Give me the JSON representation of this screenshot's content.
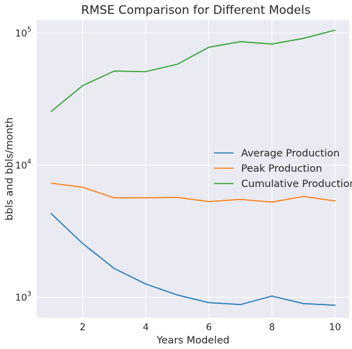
{
  "chart_data": {
    "type": "line",
    "title": "RMSE Comparison for Different Models",
    "xlabel": "Years Modeled",
    "ylabel": "bbls and bbls/month",
    "y_scale": "log",
    "xlim": [
      0.55,
      10.45
    ],
    "ylim": [
      700,
      125000
    ],
    "x_ticks": [
      2,
      4,
      6,
      8,
      10
    ],
    "y_ticks": [
      {
        "value": 1000,
        "base": "10",
        "exp": "3"
      },
      {
        "value": 10000,
        "base": "10",
        "exp": "4"
      },
      {
        "value": 100000,
        "base": "10",
        "exp": "5"
      }
    ],
    "grid": true,
    "legend_position": "center-right",
    "x": [
      1,
      2,
      3,
      4,
      5,
      6,
      7,
      8,
      9,
      10
    ],
    "series": [
      {
        "name": "Average Production",
        "color": "#1f77b4",
        "values": [
          4300,
          2550,
          1650,
          1260,
          1040,
          910,
          880,
          1020,
          895,
          870
        ]
      },
      {
        "name": "Peak Production",
        "color": "#ff7f0e",
        "values": [
          7300,
          6800,
          5650,
          5650,
          5700,
          5300,
          5500,
          5250,
          5800,
          5350
        ]
      },
      {
        "name": "Cumulative Production",
        "color": "#2ca02c",
        "values": [
          25500,
          40000,
          51500,
          51000,
          58000,
          78000,
          86000,
          82500,
          91000,
          105000
        ]
      }
    ]
  }
}
